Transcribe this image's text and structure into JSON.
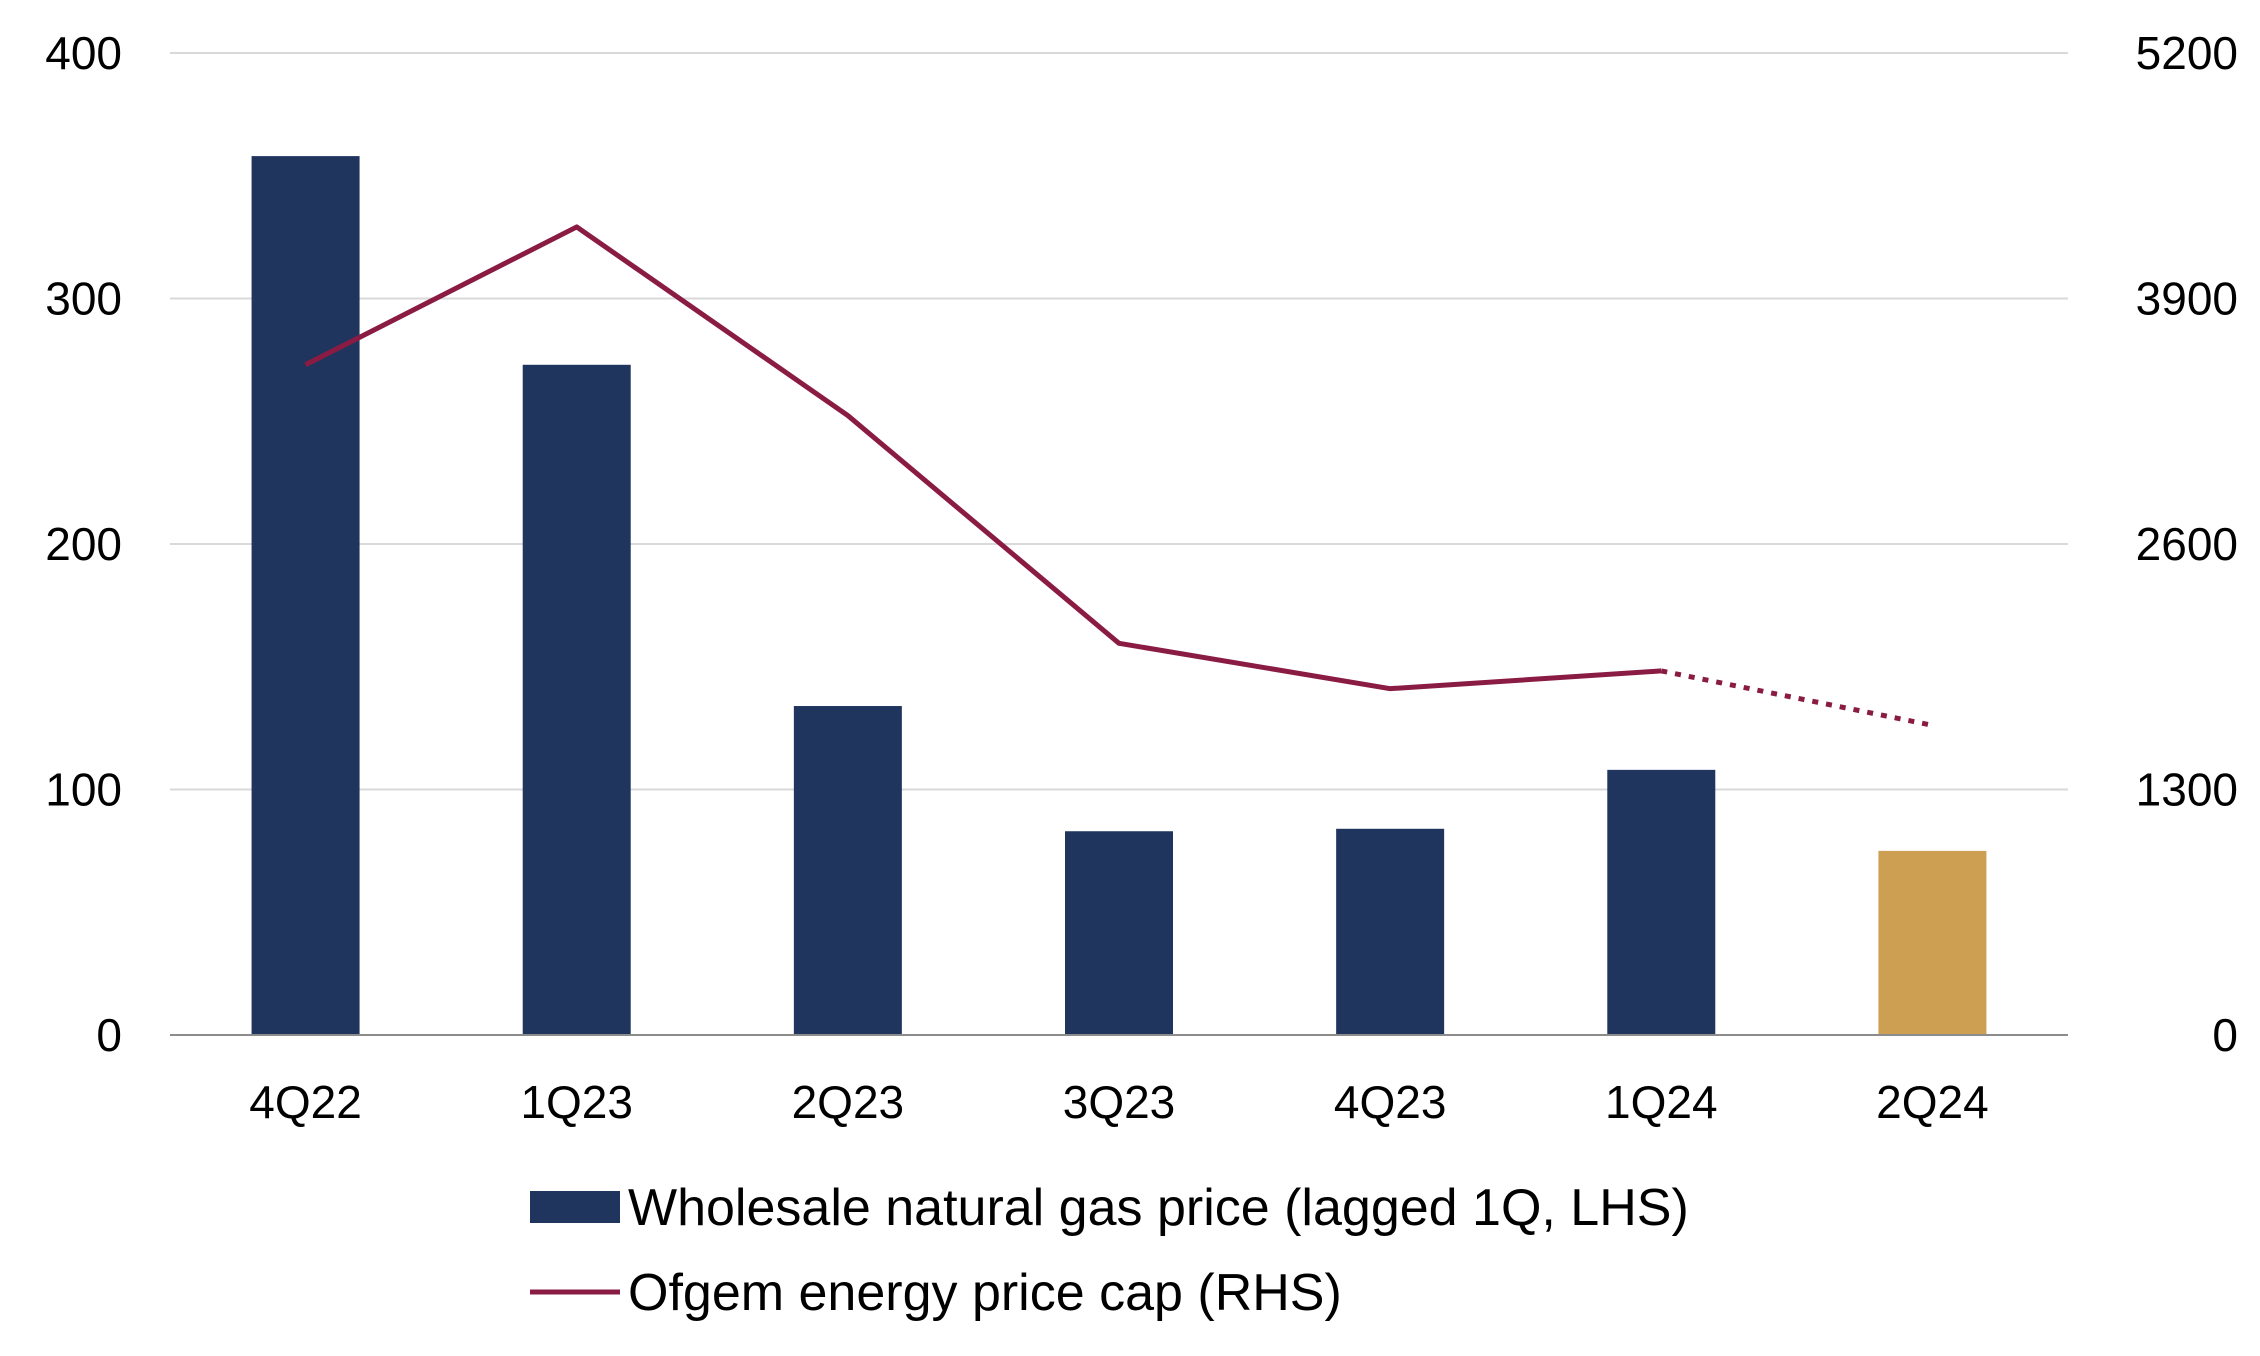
{
  "chart_data": {
    "type": "bar",
    "categories": [
      "4Q22",
      "1Q23",
      "2Q23",
      "3Q23",
      "4Q23",
      "1Q24",
      "2Q24"
    ],
    "y_left": {
      "ylim": [
        0,
        400
      ],
      "ticks": [
        "0",
        "100",
        "200",
        "300",
        "400"
      ]
    },
    "y_right": {
      "ylim": [
        0,
        5200
      ],
      "ticks": [
        "0",
        "1300",
        "2600",
        "3900",
        "5200"
      ]
    },
    "grid": true,
    "legend_position": "bottom",
    "series": [
      {
        "name": "Wholesale natural gas price (lagged 1Q, LHS)",
        "type": "bar",
        "axis": "left",
        "color": "#1f355e",
        "highlight_color": "#cc9f53",
        "highlight_index": 6,
        "values": [
          358,
          273,
          134,
          83,
          84,
          108,
          75
        ]
      },
      {
        "name": "Ofgem energy price cap (RHS)",
        "type": "line",
        "axis": "right",
        "color": "#8a1c44",
        "values": [
          3549,
          4279,
          3280,
          2074,
          1834,
          1928,
          1640
        ],
        "dotted_from_index": 5
      }
    ]
  }
}
